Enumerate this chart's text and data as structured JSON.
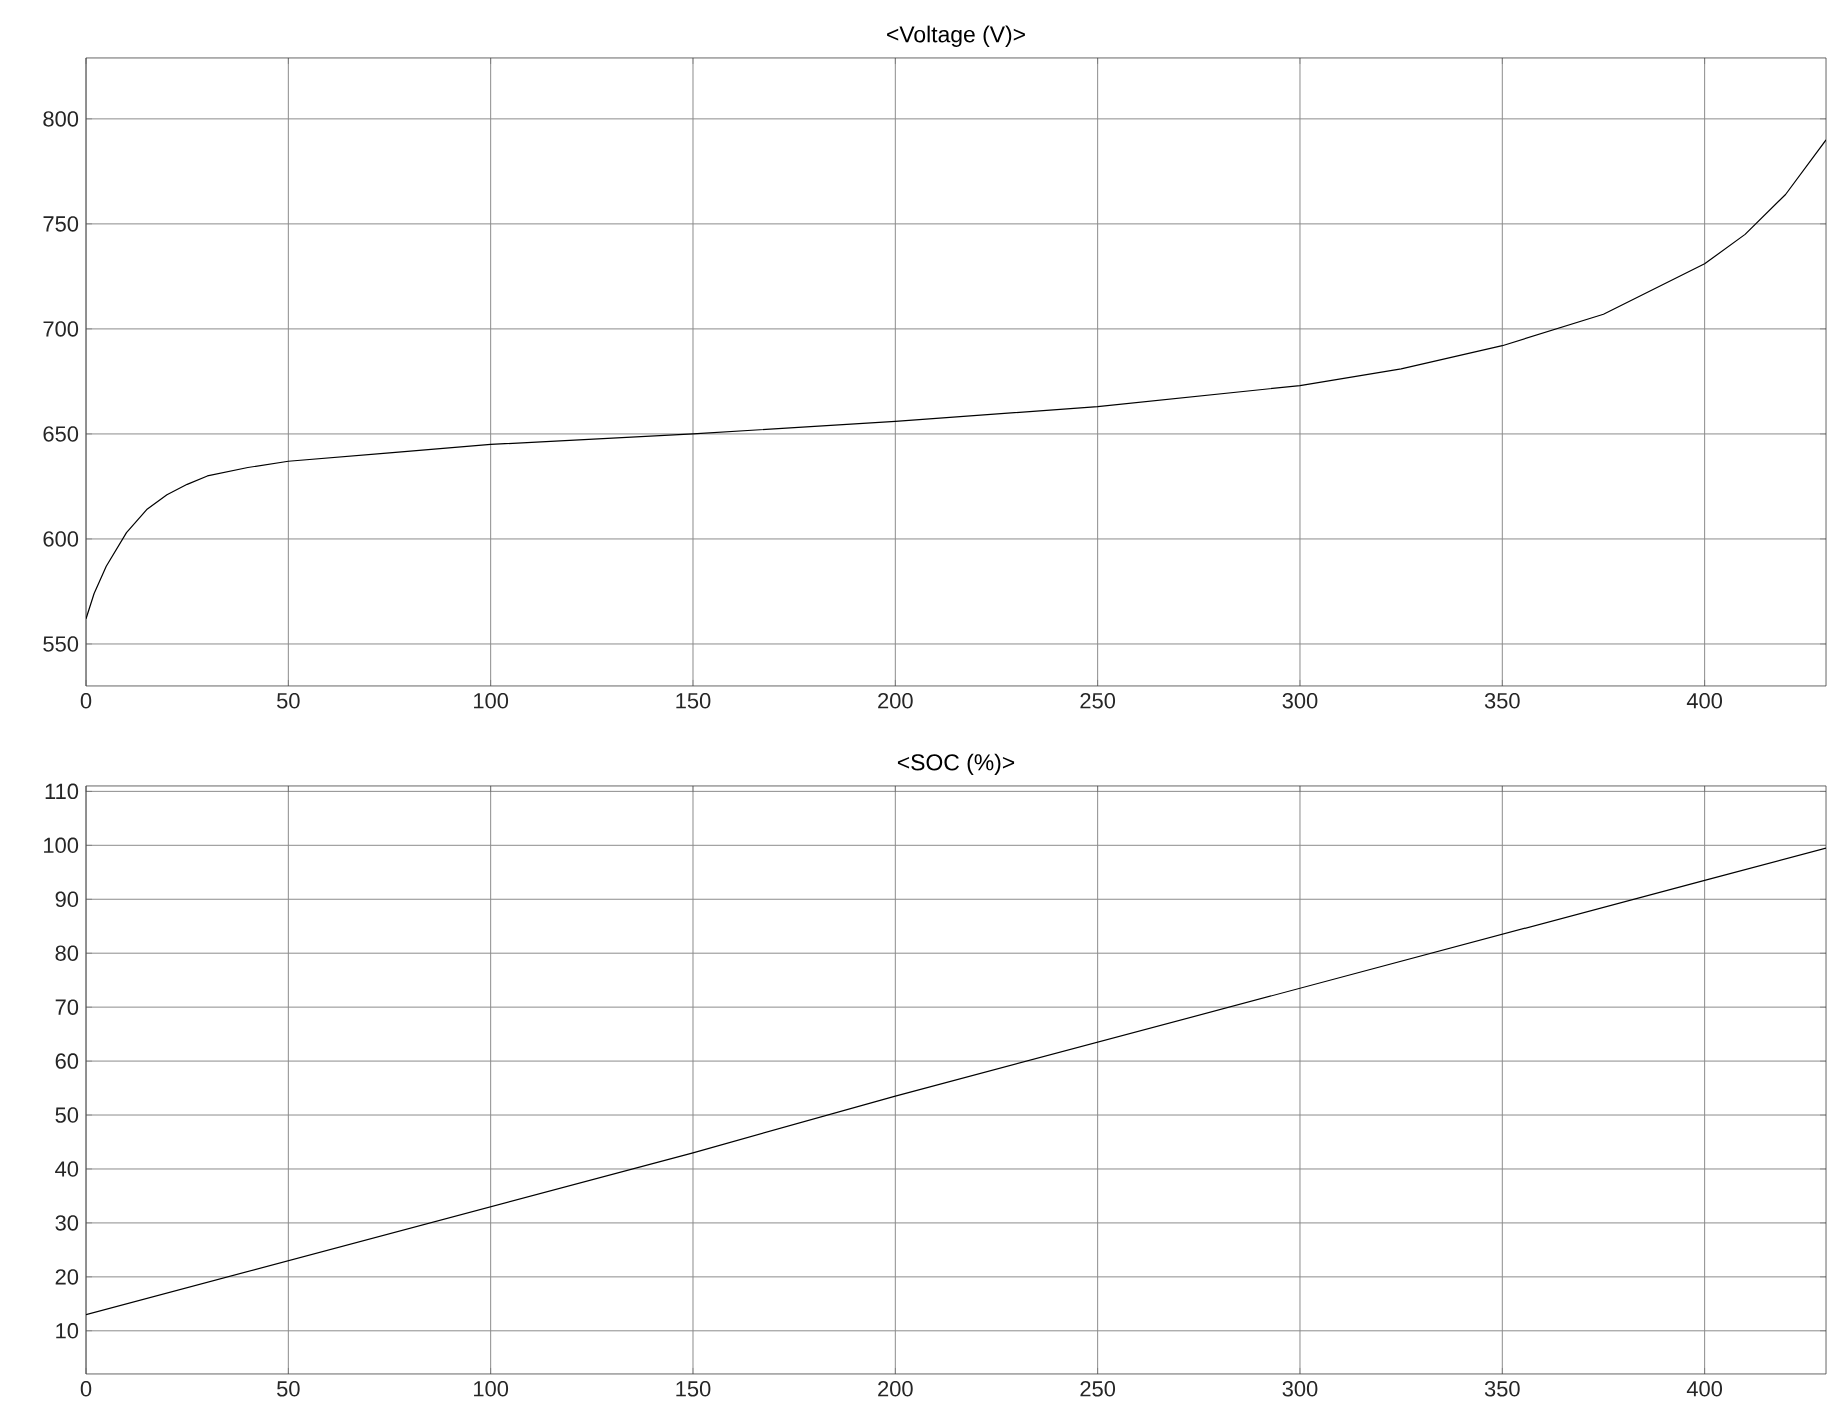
{
  "chart_data": [
    {
      "type": "line",
      "title": "<Voltage (V)>",
      "x": [
        0,
        2,
        5,
        10,
        15,
        20,
        25,
        30,
        40,
        50,
        75,
        100,
        150,
        200,
        250,
        300,
        325,
        350,
        375,
        400,
        410,
        420,
        430
      ],
      "series": [
        {
          "color": "#000000",
          "values": [
            562,
            574,
            587,
            603,
            614,
            621,
            626,
            630,
            634,
            637,
            641,
            645,
            650,
            656,
            663,
            673,
            681,
            692,
            707,
            731,
            745,
            764,
            790
          ]
        }
      ],
      "xlim": [
        0,
        430
      ],
      "ylim": [
        530,
        829
      ],
      "xticks": [
        0,
        50,
        100,
        150,
        200,
        250,
        300,
        350,
        400
      ],
      "yticks": [
        550,
        600,
        650,
        700,
        750,
        800
      ],
      "grid": true
    },
    {
      "type": "line",
      "title": "<SOC (%)>",
      "x": [
        0,
        50,
        100,
        150,
        200,
        250,
        300,
        350,
        400,
        430
      ],
      "series": [
        {
          "color": "#000000",
          "values": [
            13,
            23,
            33,
            43,
            53.5,
            63.5,
            73.5,
            83.5,
            93.5,
            99.5
          ]
        }
      ],
      "xlim": [
        0,
        430
      ],
      "ylim": [
        2,
        111
      ],
      "xticks": [
        0,
        50,
        100,
        150,
        200,
        250,
        300,
        350,
        400
      ],
      "yticks": [
        10,
        20,
        30,
        40,
        50,
        60,
        70,
        80,
        90,
        100,
        110
      ],
      "grid": true
    }
  ]
}
